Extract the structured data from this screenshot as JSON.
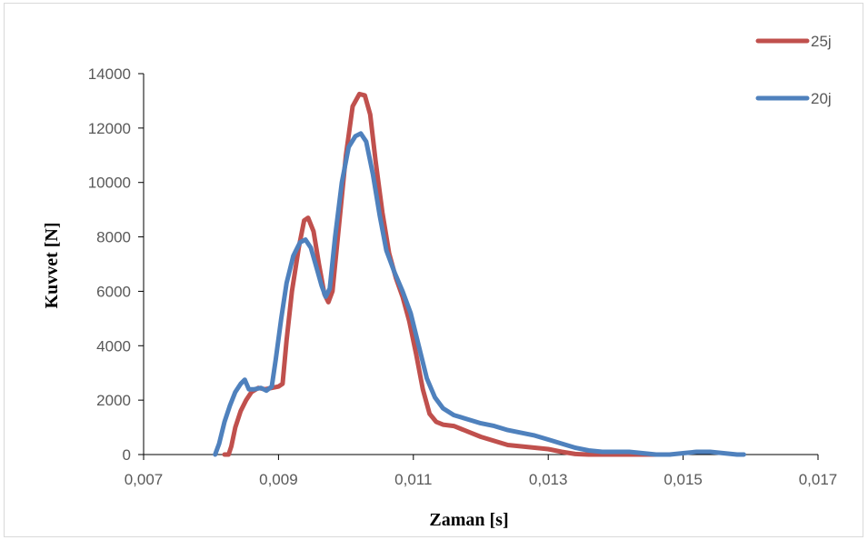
{
  "chart_data": {
    "type": "line",
    "xlabel": "Zaman [s]",
    "ylabel": "Kuvvet [N]",
    "xlim": [
      0.007,
      0.017
    ],
    "ylim": [
      0,
      14000
    ],
    "x_ticks": [
      0.007,
      0.009,
      0.011,
      0.013,
      0.015,
      0.017
    ],
    "x_tick_labels": [
      "0,007",
      "0,009",
      "0,011",
      "0,013",
      "0,015",
      "0,017"
    ],
    "y_ticks": [
      0,
      2000,
      4000,
      6000,
      8000,
      10000,
      12000,
      14000
    ],
    "y_tick_labels": [
      "0",
      "2000",
      "4000",
      "6000",
      "8000",
      "10000",
      "12000",
      "14000"
    ],
    "grid": false,
    "legend_position": "top-right",
    "series": [
      {
        "name": "25j",
        "color": "#c0504d",
        "points": [
          [
            0.0082,
            0
          ],
          [
            0.00826,
            0
          ],
          [
            0.0083,
            300
          ],
          [
            0.00836,
            1000
          ],
          [
            0.00844,
            1600
          ],
          [
            0.00852,
            2000
          ],
          [
            0.0086,
            2300
          ],
          [
            0.0087,
            2450
          ],
          [
            0.0088,
            2400
          ],
          [
            0.0089,
            2450
          ],
          [
            0.009,
            2500
          ],
          [
            0.00906,
            2600
          ],
          [
            0.00912,
            4200
          ],
          [
            0.0092,
            6000
          ],
          [
            0.0093,
            7600
          ],
          [
            0.00938,
            8600
          ],
          [
            0.00944,
            8700
          ],
          [
            0.00952,
            8200
          ],
          [
            0.0096,
            7000
          ],
          [
            0.00968,
            5900
          ],
          [
            0.00974,
            5600
          ],
          [
            0.0098,
            6000
          ],
          [
            0.0099,
            8500
          ],
          [
            0.01,
            11000
          ],
          [
            0.0101,
            12800
          ],
          [
            0.0102,
            13250
          ],
          [
            0.01028,
            13200
          ],
          [
            0.01036,
            12500
          ],
          [
            0.01044,
            10800
          ],
          [
            0.01054,
            8900
          ],
          [
            0.01064,
            7400
          ],
          [
            0.01074,
            6500
          ],
          [
            0.01084,
            5800
          ],
          [
            0.01094,
            4900
          ],
          [
            0.01104,
            3700
          ],
          [
            0.01114,
            2400
          ],
          [
            0.01124,
            1500
          ],
          [
            0.01134,
            1200
          ],
          [
            0.01144,
            1100
          ],
          [
            0.0116,
            1050
          ],
          [
            0.0118,
            850
          ],
          [
            0.012,
            650
          ],
          [
            0.0122,
            500
          ],
          [
            0.0124,
            350
          ],
          [
            0.0126,
            300
          ],
          [
            0.0128,
            250
          ],
          [
            0.013,
            200
          ],
          [
            0.0132,
            100
          ],
          [
            0.0134,
            20
          ],
          [
            0.0136,
            0
          ],
          [
            0.014,
            0
          ],
          [
            0.0146,
            0
          ],
          [
            0.0148,
            0
          ]
        ]
      },
      {
        "name": "20j",
        "color": "#4f81bd",
        "points": [
          [
            0.00806,
            0
          ],
          [
            0.00812,
            400
          ],
          [
            0.0082,
            1200
          ],
          [
            0.00828,
            1800
          ],
          [
            0.00836,
            2300
          ],
          [
            0.00844,
            2600
          ],
          [
            0.0085,
            2750
          ],
          [
            0.00856,
            2400
          ],
          [
            0.00864,
            2400
          ],
          [
            0.00874,
            2450
          ],
          [
            0.00882,
            2350
          ],
          [
            0.0089,
            2500
          ],
          [
            0.00896,
            3500
          ],
          [
            0.00904,
            5000
          ],
          [
            0.00912,
            6300
          ],
          [
            0.00922,
            7300
          ],
          [
            0.00932,
            7800
          ],
          [
            0.0094,
            7900
          ],
          [
            0.00948,
            7600
          ],
          [
            0.00956,
            6900
          ],
          [
            0.00964,
            6200
          ],
          [
            0.0097,
            5800
          ],
          [
            0.00976,
            6100
          ],
          [
            0.00984,
            8000
          ],
          [
            0.00994,
            10000
          ],
          [
            0.01004,
            11300
          ],
          [
            0.01014,
            11700
          ],
          [
            0.01022,
            11800
          ],
          [
            0.0103,
            11500
          ],
          [
            0.0104,
            10300
          ],
          [
            0.0105,
            8800
          ],
          [
            0.0106,
            7500
          ],
          [
            0.01072,
            6700
          ],
          [
            0.01084,
            6000
          ],
          [
            0.01096,
            5200
          ],
          [
            0.01108,
            4000
          ],
          [
            0.0112,
            2800
          ],
          [
            0.01132,
            2100
          ],
          [
            0.01144,
            1700
          ],
          [
            0.0116,
            1450
          ],
          [
            0.0118,
            1300
          ],
          [
            0.012,
            1150
          ],
          [
            0.0122,
            1050
          ],
          [
            0.0124,
            900
          ],
          [
            0.0126,
            800
          ],
          [
            0.0128,
            700
          ],
          [
            0.013,
            550
          ],
          [
            0.0132,
            400
          ],
          [
            0.0134,
            250
          ],
          [
            0.0136,
            150
          ],
          [
            0.0138,
            100
          ],
          [
            0.014,
            100
          ],
          [
            0.0142,
            100
          ],
          [
            0.0144,
            50
          ],
          [
            0.0146,
            0
          ],
          [
            0.0148,
            0
          ],
          [
            0.015,
            50
          ],
          [
            0.0152,
            100
          ],
          [
            0.0154,
            100
          ],
          [
            0.0156,
            50
          ],
          [
            0.0158,
            0
          ],
          [
            0.0159,
            0
          ]
        ]
      }
    ]
  }
}
